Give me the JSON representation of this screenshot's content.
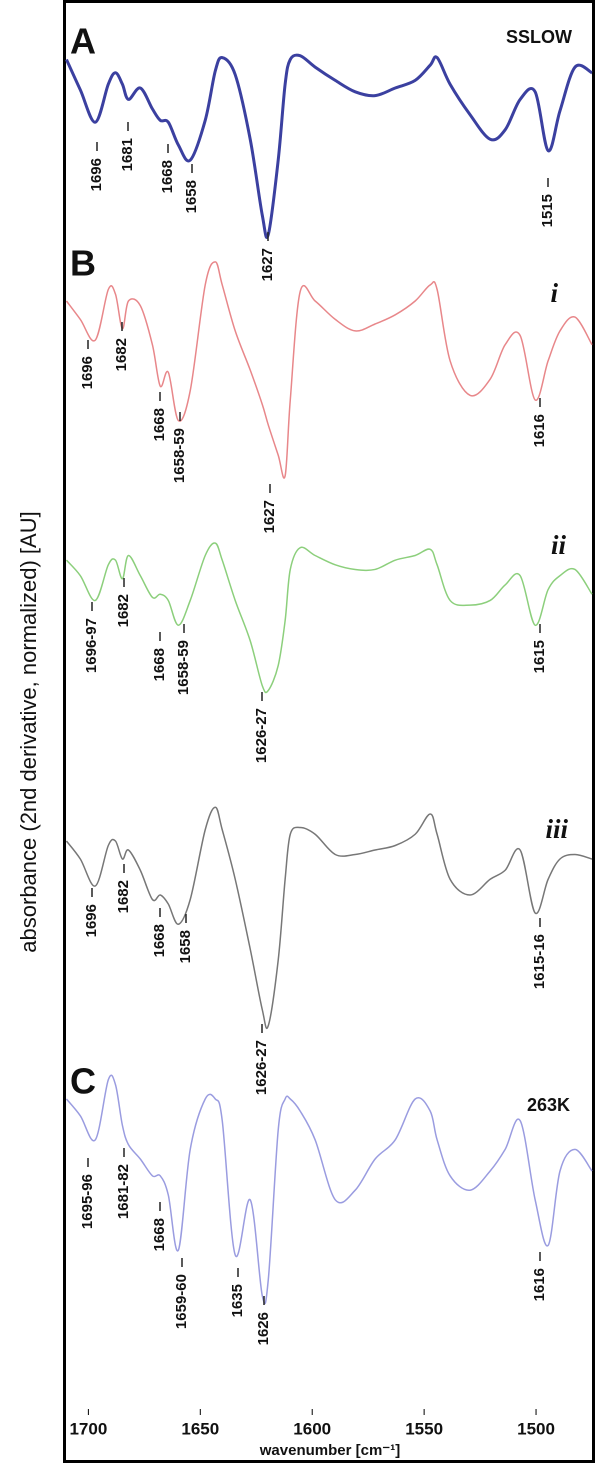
{
  "chart_data": [
    {
      "type": "line",
      "panel": "A",
      "title": "SSLOW",
      "ylabel": "absorbance (2nd derivative, normalized) [AU]",
      "xlim": [
        1710,
        1475
      ],
      "ylim": [
        0,
        1
      ],
      "x": [
        1709.8,
        1703.6,
        1696.9,
        1691.1,
        1687.9,
        1684.8,
        1682.1,
        1676.8,
        1671.4,
        1667.9,
        1664.3,
        1659.8,
        1654.5,
        1647.8,
        1643.3,
        1640.2,
        1634.4,
        1627.7,
        1622.3,
        1619.6,
        1615.2,
        1612.1,
        1609.8,
        1605.4,
        1598.7,
        1589.7,
        1580.8,
        1571.9,
        1562.9,
        1554.0,
        1547.3,
        1544.2,
        1538.4,
        1529.5,
        1520.5,
        1513.8,
        1507.1,
        1500.4,
        1494.6,
        1489.3,
        1482.6,
        1475.0
      ],
      "series": [
        {
          "color": "#3b40a0",
          "values": [
            0.95,
            0.79,
            0.62,
            0.82,
            0.88,
            0.82,
            0.74,
            0.8,
            0.69,
            0.63,
            0.62,
            0.5,
            0.42,
            0.63,
            0.89,
            0.96,
            0.87,
            0.53,
            0.13,
            0.03,
            0.42,
            0.82,
            0.95,
            0.97,
            0.91,
            0.84,
            0.78,
            0.76,
            0.8,
            0.84,
            0.92,
            0.96,
            0.82,
            0.66,
            0.53,
            0.58,
            0.74,
            0.78,
            0.47,
            0.68,
            0.91,
            0.88
          ]
        }
      ],
      "annotations": [
        "1696",
        "1681",
        "1668",
        "1658",
        "1627",
        "1515"
      ]
    },
    {
      "type": "line",
      "panel": "B",
      "title": "i",
      "xlim": [
        1710,
        1475
      ],
      "ylim": [
        0,
        1
      ],
      "x": [
        1709.8,
        1703.6,
        1696.9,
        1691.1,
        1687.9,
        1684.8,
        1682.1,
        1676.8,
        1671.4,
        1667.9,
        1664.3,
        1659.8,
        1654.5,
        1647.8,
        1643.3,
        1640.2,
        1634.4,
        1627.7,
        1622.3,
        1619.6,
        1615.2,
        1612.1,
        1609.8,
        1605.4,
        1598.7,
        1589.7,
        1580.8,
        1571.9,
        1562.9,
        1554.0,
        1547.3,
        1544.2,
        1538.4,
        1529.5,
        1520.5,
        1513.8,
        1507.1,
        1500.4,
        1494.6,
        1489.3,
        1482.6,
        1475.0
      ],
      "series": [
        {
          "color": "#e8878a",
          "values": [
            0.8,
            0.72,
            0.63,
            0.85,
            0.83,
            0.68,
            0.8,
            0.78,
            0.61,
            0.43,
            0.49,
            0.28,
            0.41,
            0.87,
            0.97,
            0.87,
            0.67,
            0.5,
            0.35,
            0.26,
            0.13,
            0.04,
            0.37,
            0.84,
            0.8,
            0.72,
            0.67,
            0.7,
            0.74,
            0.8,
            0.87,
            0.85,
            0.54,
            0.39,
            0.46,
            0.61,
            0.65,
            0.37,
            0.54,
            0.67,
            0.73,
            0.61
          ]
        }
      ],
      "annotations": [
        "1696",
        "1682",
        "1668",
        "1658-59",
        "1627",
        "1616"
      ]
    },
    {
      "type": "line",
      "title": "ii",
      "xlim": [
        1710,
        1475
      ],
      "ylim": [
        0,
        1
      ],
      "x": [
        1709.8,
        1703.6,
        1696.9,
        1691.1,
        1687.9,
        1684.8,
        1682.1,
        1676.8,
        1671.4,
        1667.9,
        1664.3,
        1659.8,
        1654.5,
        1647.8,
        1643.3,
        1640.2,
        1634.4,
        1627.7,
        1622.3,
        1619.6,
        1615.2,
        1612.1,
        1609.8,
        1605.4,
        1598.7,
        1589.7,
        1580.8,
        1571.9,
        1562.9,
        1554.0,
        1547.3,
        1544.2,
        1538.4,
        1529.5,
        1520.5,
        1513.8,
        1507.1,
        1500.4,
        1494.6,
        1489.3,
        1482.6,
        1475.0
      ],
      "series": [
        {
          "color": "#8ccf7c",
          "values": [
            0.87,
            0.77,
            0.61,
            0.84,
            0.87,
            0.75,
            0.9,
            0.77,
            0.63,
            0.65,
            0.61,
            0.45,
            0.61,
            0.9,
            0.98,
            0.87,
            0.61,
            0.35,
            0.06,
            0.03,
            0.19,
            0.48,
            0.81,
            0.95,
            0.9,
            0.84,
            0.81,
            0.81,
            0.87,
            0.9,
            0.94,
            0.84,
            0.61,
            0.58,
            0.61,
            0.71,
            0.77,
            0.45,
            0.68,
            0.77,
            0.81,
            0.65
          ]
        }
      ],
      "annotations": [
        "1696-97",
        "1682",
        "1668",
        "1658-59",
        "1626-27",
        "1615"
      ]
    },
    {
      "type": "line",
      "title": "iii",
      "xlim": [
        1710,
        1475
      ],
      "ylim": [
        0,
        1
      ],
      "x": [
        1709.8,
        1703.6,
        1696.9,
        1691.1,
        1687.9,
        1684.8,
        1682.1,
        1676.8,
        1671.4,
        1667.9,
        1664.3,
        1659.8,
        1654.5,
        1647.8,
        1643.3,
        1640.2,
        1634.4,
        1627.7,
        1622.3,
        1619.6,
        1615.2,
        1612.1,
        1609.8,
        1605.4,
        1598.7,
        1589.7,
        1580.8,
        1571.9,
        1562.9,
        1554.0,
        1547.3,
        1544.2,
        1538.4,
        1529.5,
        1520.5,
        1513.8,
        1507.1,
        1500.4,
        1494.6,
        1489.3,
        1482.6,
        1475.0
      ],
      "series": [
        {
          "color": "#777777",
          "values": [
            0.84,
            0.76,
            0.64,
            0.82,
            0.84,
            0.76,
            0.8,
            0.71,
            0.58,
            0.6,
            0.56,
            0.47,
            0.58,
            0.89,
            0.99,
            0.89,
            0.67,
            0.36,
            0.09,
            0.02,
            0.31,
            0.67,
            0.87,
            0.9,
            0.87,
            0.78,
            0.78,
            0.8,
            0.82,
            0.87,
            0.96,
            0.87,
            0.67,
            0.6,
            0.67,
            0.71,
            0.8,
            0.52,
            0.67,
            0.76,
            0.78,
            0.76
          ]
        }
      ],
      "annotations": [
        "1696",
        "1682",
        "1668",
        "1658",
        "1626-27",
        "1615-16"
      ]
    },
    {
      "type": "line",
      "panel": "C",
      "title": "263K",
      "xlabel": "wavenumber [cm⁻¹]",
      "xlim": [
        1710,
        1475
      ],
      "ylim": [
        0,
        1
      ],
      "xticks": [
        1700,
        1650,
        1600,
        1550,
        1500
      ],
      "x": [
        1709.8,
        1703.6,
        1696.9,
        1691.1,
        1687.9,
        1684.8,
        1682.1,
        1676.8,
        1671.4,
        1667.9,
        1664.3,
        1659.8,
        1654.5,
        1647.8,
        1643.3,
        1640.2,
        1634.4,
        1627.7,
        1622.3,
        1619.6,
        1615.2,
        1612.1,
        1609.8,
        1605.4,
        1598.7,
        1589.7,
        1580.8,
        1571.9,
        1562.9,
        1554.0,
        1547.3,
        1544.2,
        1538.4,
        1529.5,
        1520.5,
        1513.8,
        1507.1,
        1500.4,
        1494.6,
        1489.3,
        1482.6,
        1475.0
      ],
      "series": [
        {
          "color": "#9a9ce0",
          "values": [
            0.9,
            0.83,
            0.73,
            0.98,
            0.96,
            0.79,
            0.71,
            0.65,
            0.58,
            0.58,
            0.5,
            0.27,
            0.69,
            0.9,
            0.9,
            0.81,
            0.25,
            0.48,
            0.08,
            0.15,
            0.77,
            0.9,
            0.9,
            0.85,
            0.73,
            0.48,
            0.52,
            0.65,
            0.73,
            0.9,
            0.85,
            0.73,
            0.58,
            0.52,
            0.6,
            0.69,
            0.81,
            0.48,
            0.29,
            0.6,
            0.69,
            0.6
          ]
        }
      ],
      "annotations": [
        "1695-96",
        "1681-82",
        "1668",
        "1659-60",
        "1635",
        "1626",
        "1616"
      ]
    }
  ]
}
